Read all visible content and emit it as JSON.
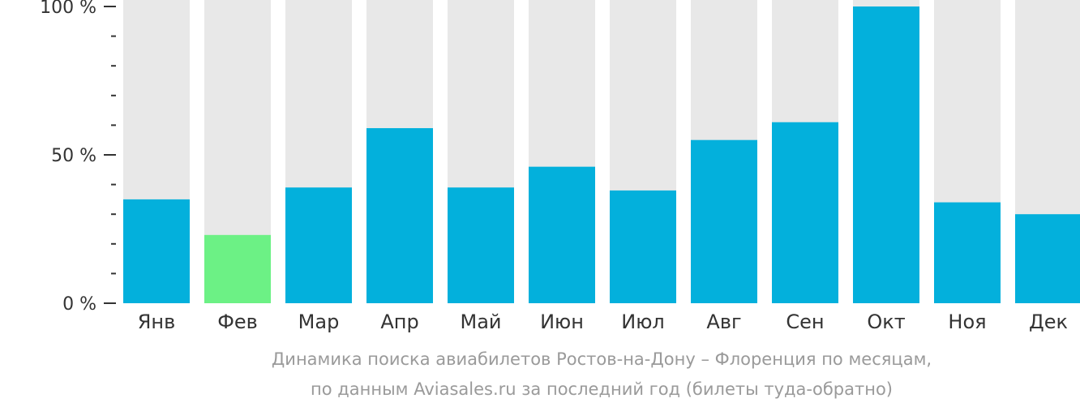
{
  "chart_data": {
    "type": "bar",
    "categories": [
      "Янв",
      "Фев",
      "Мар",
      "Апр",
      "Май",
      "Июн",
      "Июл",
      "Авг",
      "Сен",
      "Окт",
      "Ноя",
      "Дек"
    ],
    "values": [
      35,
      23,
      39,
      59,
      39,
      46,
      38,
      55,
      61,
      100,
      34,
      30
    ],
    "highlight_index": 1,
    "ylim": [
      0,
      100
    ],
    "yticks": [
      {
        "value": 0,
        "label": "0 %"
      },
      {
        "value": 50,
        "label": "50 %"
      },
      {
        "value": 100,
        "label": "100 %"
      }
    ],
    "minor_tick_step": 10,
    "colors": {
      "bar": "#03b0dc",
      "highlight": "#6cf185",
      "background_bar": "#e8e8e8",
      "axis": "#333333"
    },
    "caption": [
      "Динамика поиска авиабилетов Ростов-на-Дону – Флоренция по месяцам,",
      "по данным Aviasales.ru за последний год (билеты туда-обратно)"
    ]
  }
}
